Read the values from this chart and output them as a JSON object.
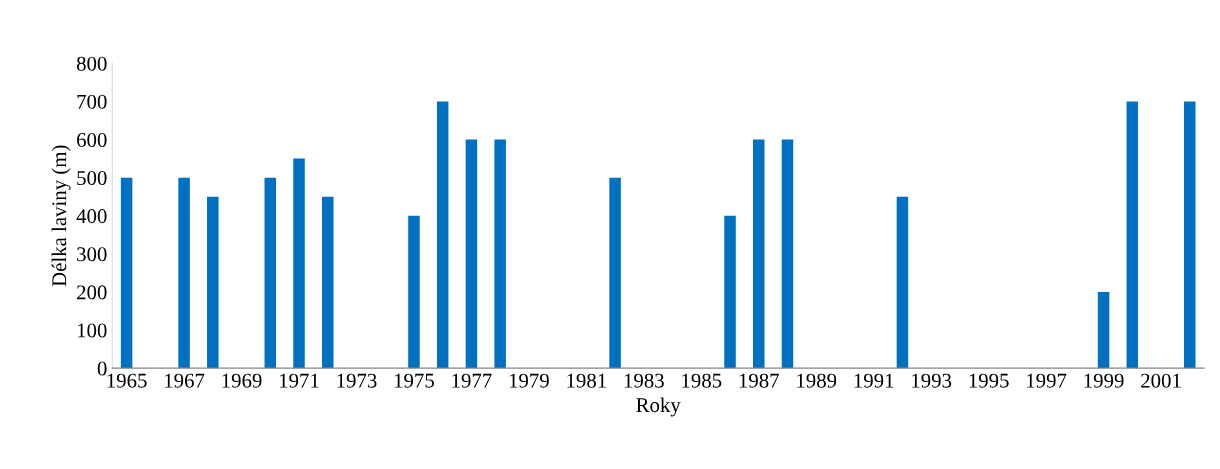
{
  "chart_data": {
    "type": "bar",
    "xlabel": "Roky",
    "ylabel": "Délka laviny (m)",
    "categories": [
      "1965",
      null,
      "1967",
      null,
      "1969",
      null,
      "1971",
      null,
      "1973",
      null,
      "1975",
      null,
      "1977",
      null,
      "1979",
      null,
      "1981",
      null,
      "1983",
      null,
      "1985",
      null,
      "1987",
      null,
      "1989",
      null,
      "1991",
      null,
      "1993",
      null,
      "1995",
      null,
      "1997",
      null,
      "1999",
      null,
      "2001",
      null
    ],
    "values": [
      500,
      null,
      500,
      450,
      null,
      500,
      550,
      450,
      null,
      null,
      400,
      700,
      600,
      600,
      null,
      null,
      null,
      500,
      null,
      null,
      null,
      400,
      600,
      600,
      null,
      null,
      null,
      450,
      null,
      null,
      null,
      null,
      null,
      null,
      200,
      700,
      null,
      700
    ],
    "color": "#0070c0",
    "ylim": [
      0,
      800
    ],
    "yticks": [
      0,
      100,
      200,
      300,
      400,
      500,
      600,
      700,
      800
    ],
    "grid": false,
    "legend": false
  }
}
